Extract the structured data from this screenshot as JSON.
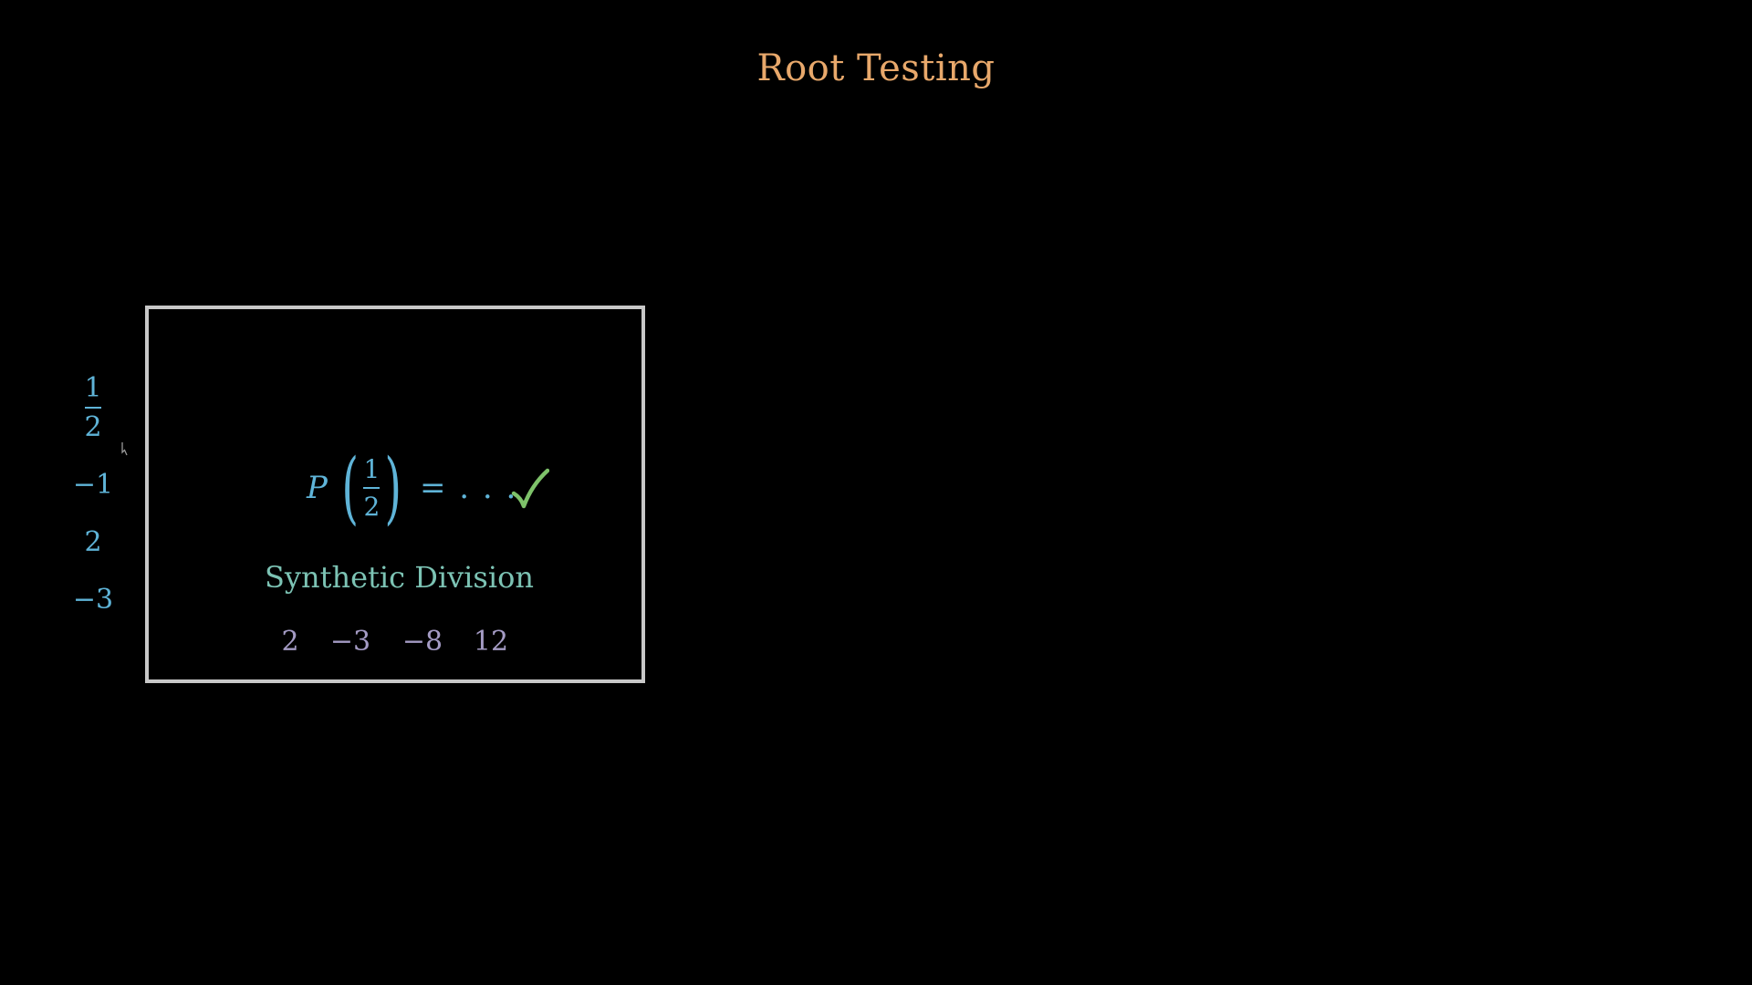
{
  "colors": {
    "background": "#000000",
    "title": "#e8a86b",
    "candidates": "#5fb4d8",
    "box_border": "#c8c8c8",
    "equation": "#5fb4d8",
    "check": "#7ec26a",
    "synthetic_label": "#7cc3b4",
    "coefficients": "#a49bc4"
  },
  "title": "Root Testing",
  "candidates": [
    {
      "kind": "fraction",
      "numerator": "1",
      "denominator": "2"
    },
    {
      "kind": "number",
      "text": "−1"
    },
    {
      "kind": "number",
      "text": "2"
    },
    {
      "kind": "number",
      "text": "−3"
    }
  ],
  "box": {
    "equation": {
      "variable": "P",
      "numerator": "1",
      "denominator": "2",
      "rest": "= . . ."
    },
    "check_icon": "checkmark-icon",
    "synthetic_label": "Synthetic Division",
    "coefficients": [
      "2",
      "−3",
      "−8",
      "12"
    ]
  }
}
